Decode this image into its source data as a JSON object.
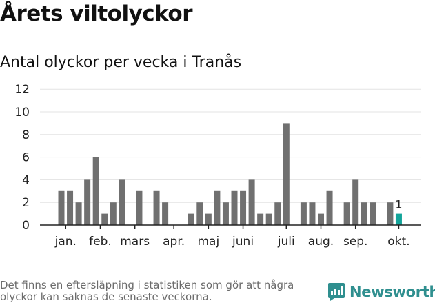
{
  "header": {
    "title": "Årets viltolyckor",
    "subtitle": "Antal olyckor per vecka i Tranås"
  },
  "footer": {
    "note": "Det finns en eftersläpning i statistiken som gör att några olyckor kan saknas de senaste veckorna.",
    "brand": "Newsworthy"
  },
  "colors": {
    "bar": "#707070",
    "highlight": "#12a49a",
    "grid": "#e3e3e3",
    "axis": "#222222",
    "brand": "#2f8f8f"
  },
  "chart_data": {
    "type": "bar",
    "title": "Antal olyckor per vecka i Tranås",
    "xlabel": "",
    "ylabel": "",
    "ylim": [
      0,
      12
    ],
    "yticks": [
      0,
      2,
      4,
      6,
      8,
      10,
      12
    ],
    "grid": true,
    "weeks": [
      1,
      2,
      3,
      4,
      5,
      6,
      7,
      8,
      9,
      10,
      11,
      12,
      13,
      14,
      15,
      16,
      17,
      18,
      19,
      20,
      21,
      22,
      23,
      24,
      25,
      26,
      27,
      28,
      29,
      30,
      31,
      32,
      33,
      34,
      35,
      36,
      37,
      38,
      39,
      40
    ],
    "values": [
      3,
      3,
      2,
      4,
      6,
      1,
      2,
      4,
      0,
      3,
      0,
      3,
      2,
      0,
      0,
      1,
      2,
      1,
      3,
      2,
      3,
      3,
      4,
      1,
      1,
      2,
      9,
      0,
      2,
      2,
      1,
      3,
      0,
      2,
      4,
      2,
      2,
      0,
      2,
      1
    ],
    "highlight_last": true,
    "highlight_label": "1",
    "month_labels": [
      {
        "label": "jan.",
        "week": 1.5
      },
      {
        "label": "feb.",
        "week": 5.5
      },
      {
        "label": "mars",
        "week": 9.5
      },
      {
        "label": "apr.",
        "week": 14
      },
      {
        "label": "maj",
        "week": 18
      },
      {
        "label": "juni",
        "week": 22
      },
      {
        "label": "juli",
        "week": 27
      },
      {
        "label": "aug.",
        "week": 31
      },
      {
        "label": "sep.",
        "week": 35
      },
      {
        "label": "okt.",
        "week": 40
      }
    ]
  }
}
